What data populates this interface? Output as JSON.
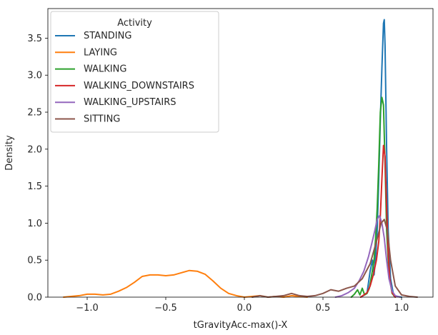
{
  "chart_data": {
    "type": "line",
    "xlabel": "tGravityAcc-max()-X",
    "ylabel": "Density",
    "xlim": [
      -1.25,
      1.2
    ],
    "ylim": [
      0,
      3.9
    ],
    "xticks": [
      -1.0,
      -0.5,
      0.0,
      0.5,
      1.0
    ],
    "xtick_labels": [
      "−1.0",
      "−0.5",
      "0.0",
      "0.5",
      "1.0"
    ],
    "yticks": [
      0.0,
      0.5,
      1.0,
      1.5,
      2.0,
      2.5,
      3.0,
      3.5
    ],
    "ytick_labels": [
      "0.0",
      "0.5",
      "1.0",
      "1.5",
      "2.0",
      "2.5",
      "3.0",
      "3.5"
    ],
    "grid": false,
    "legend": {
      "title": "Activity",
      "placement": "top-left"
    },
    "series": [
      {
        "name": "STANDING",
        "color": "#1f77b4",
        "x": [
          0.74,
          0.78,
          0.8,
          0.815,
          0.825,
          0.835,
          0.845,
          0.855,
          0.865,
          0.875,
          0.885,
          0.89,
          0.895,
          0.905,
          0.915,
          0.93,
          0.95,
          1.0
        ],
        "y": [
          0.0,
          0.05,
          0.35,
          0.5,
          0.3,
          0.55,
          0.9,
          1.6,
          2.4,
          3.1,
          3.7,
          3.75,
          3.4,
          2.0,
          0.9,
          0.25,
          0.02,
          0.0
        ]
      },
      {
        "name": "LAYING",
        "color": "#ff7f0e",
        "x": [
          -1.15,
          -1.05,
          -1.0,
          -0.95,
          -0.9,
          -0.85,
          -0.8,
          -0.75,
          -0.7,
          -0.65,
          -0.6,
          -0.55,
          -0.5,
          -0.45,
          -0.4,
          -0.35,
          -0.3,
          -0.25,
          -0.2,
          -0.15,
          -0.1,
          -0.05,
          0.0,
          0.05,
          0.1,
          0.15,
          0.2,
          0.25,
          0.3,
          0.35,
          0.4
        ],
        "y": [
          0.0,
          0.02,
          0.04,
          0.04,
          0.03,
          0.04,
          0.08,
          0.13,
          0.2,
          0.28,
          0.3,
          0.3,
          0.29,
          0.3,
          0.33,
          0.36,
          0.35,
          0.31,
          0.22,
          0.12,
          0.05,
          0.02,
          0.0,
          0.01,
          0.02,
          0.0,
          0.01,
          0.0,
          0.02,
          0.01,
          0.0
        ]
      },
      {
        "name": "WALKING",
        "color": "#2ca02c",
        "x": [
          0.68,
          0.7,
          0.72,
          0.735,
          0.75,
          0.765,
          0.78,
          0.795,
          0.81,
          0.825,
          0.835,
          0.845,
          0.855,
          0.865,
          0.875,
          0.885,
          0.895,
          0.905,
          0.92,
          0.94,
          0.96
        ],
        "y": [
          0.0,
          0.04,
          0.1,
          0.03,
          0.12,
          0.03,
          0.05,
          0.12,
          0.3,
          0.5,
          0.8,
          1.2,
          1.8,
          2.5,
          2.7,
          2.6,
          1.8,
          0.9,
          0.3,
          0.05,
          0.0
        ]
      },
      {
        "name": "WALKING_DOWNSTAIRS",
        "color": "#d62728",
        "x": [
          0.74,
          0.76,
          0.78,
          0.8,
          0.82,
          0.84,
          0.855,
          0.865,
          0.875,
          0.885,
          0.895,
          0.905,
          0.915,
          0.925,
          0.94,
          0.96
        ],
        "y": [
          0.0,
          0.03,
          0.06,
          0.15,
          0.3,
          0.5,
          0.75,
          1.1,
          1.6,
          2.05,
          1.9,
          1.2,
          0.6,
          0.25,
          0.06,
          0.0
        ]
      },
      {
        "name": "WALKING_UPSTAIRS",
        "color": "#9467bd",
        "x": [
          0.58,
          0.62,
          0.66,
          0.7,
          0.73,
          0.76,
          0.79,
          0.81,
          0.83,
          0.845,
          0.86,
          0.875,
          0.89,
          0.905,
          0.92,
          0.94,
          0.96,
          0.99
        ],
        "y": [
          0.0,
          0.02,
          0.06,
          0.12,
          0.22,
          0.35,
          0.55,
          0.72,
          0.9,
          1.05,
          1.1,
          1.0,
          0.8,
          0.5,
          0.25,
          0.08,
          0.02,
          0.0
        ]
      },
      {
        "name": "SITTING",
        "color": "#8c564b",
        "x": [
          0.05,
          0.1,
          0.15,
          0.2,
          0.25,
          0.3,
          0.35,
          0.4,
          0.45,
          0.5,
          0.55,
          0.6,
          0.65,
          0.7,
          0.75,
          0.8,
          0.84,
          0.87,
          0.89,
          0.91,
          0.93,
          0.96,
          1.0,
          1.05,
          1.1
        ],
        "y": [
          0.0,
          0.02,
          0.0,
          0.01,
          0.02,
          0.05,
          0.02,
          0.01,
          0.02,
          0.05,
          0.1,
          0.08,
          0.12,
          0.15,
          0.25,
          0.45,
          0.75,
          1.0,
          1.05,
          0.9,
          0.5,
          0.15,
          0.03,
          0.01,
          0.0
        ]
      }
    ]
  }
}
